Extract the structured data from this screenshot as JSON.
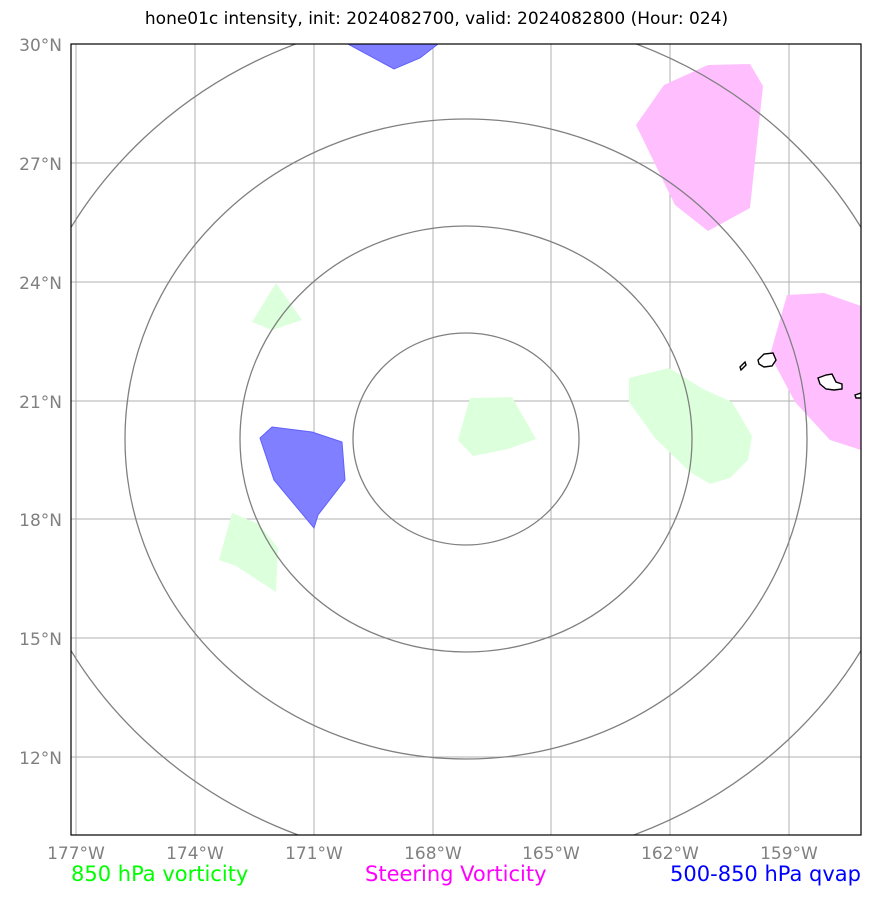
{
  "title": "hone01c intensity, init: 2024082700, valid: 2024082800 (Hour: 024)",
  "axes": {
    "lat_labels": [
      "30°N",
      "27°N",
      "24°N",
      "21°N",
      "18°N",
      "15°N",
      "12°N"
    ],
    "lon_labels": [
      "177°W",
      "174°W",
      "171°W",
      "168°W",
      "165°W",
      "162°W",
      "159°W"
    ]
  },
  "legend": {
    "vort850": {
      "label": "850 hPa vorticity",
      "color": "#00ff00"
    },
    "steering": {
      "label": "Steering Vorticity",
      "color": "#ff00ff"
    },
    "qvap": {
      "label": "500-850 hPa qvap",
      "color": "#0000ff"
    }
  },
  "colors": {
    "vort850_fill": "#dcffdc",
    "steering_fill": "#ffbfff",
    "qvap_fill": "#7f7fff",
    "range_rings": "#808080",
    "gridlines": "#b0b0b0",
    "coastline": "#000000"
  },
  "map": {
    "lat_range": [
      10,
      30
    ],
    "lon_range": [
      -177,
      -157
    ],
    "center_lon": -167,
    "center_lat": 20.5,
    "range_rings": 4,
    "islands_shown": "Hawaiian Islands"
  }
}
